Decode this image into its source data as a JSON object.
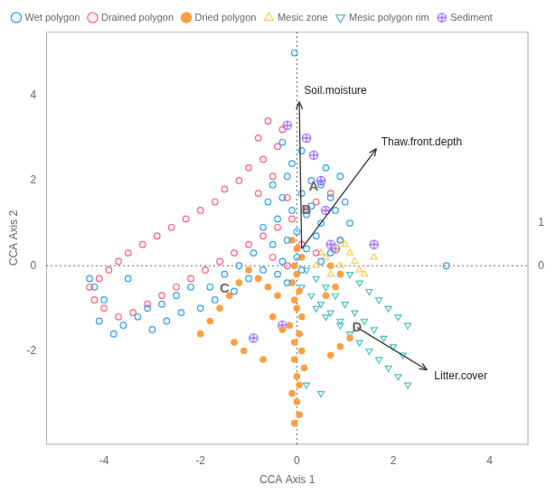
{
  "chart_data": {
    "type": "scatter",
    "xlabel": "CCA Axis 1",
    "ylabel": "CCA Axis 2",
    "xlim": [
      -5.2,
      4.8
    ],
    "ylim": [
      -4.2,
      5.5
    ],
    "xticks": [
      -4,
      -2,
      0,
      2,
      4
    ],
    "yticks": [
      -2,
      0,
      2,
      4
    ],
    "y2lim": [
      -4.2,
      5.5
    ],
    "y2ticks": [
      0,
      1
    ],
    "grid": false,
    "legend": "upper left",
    "series": [
      {
        "name": "Wet polygon",
        "marker": "open_circle",
        "values": [
          [
            -0.05,
            5.0
          ],
          [
            -0.3,
            2.9
          ],
          [
            0.1,
            2.7
          ],
          [
            -0.1,
            2.4
          ],
          [
            0.6,
            2.3
          ],
          [
            0.9,
            2.1
          ],
          [
            -0.2,
            2.1
          ],
          [
            0.3,
            2.0
          ],
          [
            -0.5,
            1.9
          ],
          [
            0.5,
            1.9
          ],
          [
            0.1,
            1.7
          ],
          [
            -0.3,
            1.6
          ],
          [
            0.7,
            1.6
          ],
          [
            1.0,
            1.5
          ],
          [
            -0.6,
            1.5
          ],
          [
            0.3,
            1.4
          ],
          [
            -0.1,
            1.3
          ],
          [
            0.8,
            1.3
          ],
          [
            0.2,
            1.2
          ],
          [
            -0.4,
            1.1
          ],
          [
            0.5,
            1.0
          ],
          [
            1.1,
            1.0
          ],
          [
            -0.7,
            0.9
          ],
          [
            0.0,
            0.8
          ],
          [
            0.4,
            0.7
          ],
          [
            -0.2,
            0.6
          ],
          [
            0.9,
            0.6
          ],
          [
            -0.5,
            0.5
          ],
          [
            0.2,
            0.4
          ],
          [
            0.7,
            0.3
          ],
          [
            -0.9,
            0.3
          ],
          [
            0.0,
            0.2
          ],
          [
            -0.3,
            0.1
          ],
          [
            0.5,
            0.1
          ],
          [
            -1.2,
            0.0
          ],
          [
            -0.7,
            -0.1
          ],
          [
            0.1,
            -0.1
          ],
          [
            -0.4,
            -0.2
          ],
          [
            -1.5,
            -0.2
          ],
          [
            -1.0,
            -0.3
          ],
          [
            -0.2,
            -0.4
          ],
          [
            -1.8,
            -0.5
          ],
          [
            -2.2,
            -0.5
          ],
          [
            -1.3,
            -0.6
          ],
          [
            -2.5,
            -0.7
          ],
          [
            -1.7,
            -0.8
          ],
          [
            -2.8,
            -0.9
          ],
          [
            -2.0,
            -1.0
          ],
          [
            -3.1,
            -1.0
          ],
          [
            -2.4,
            -1.1
          ],
          [
            -3.3,
            -1.2
          ],
          [
            -2.7,
            -1.3
          ],
          [
            -3.6,
            -1.4
          ],
          [
            -3.0,
            -1.5
          ],
          [
            -3.8,
            -1.6
          ],
          [
            -4.0,
            -0.8
          ],
          [
            -4.2,
            -0.5
          ],
          [
            -4.3,
            -0.3
          ],
          [
            -4.1,
            -1.3
          ],
          [
            -3.5,
            -0.3
          ],
          [
            3.1,
            0.0
          ]
        ]
      },
      {
        "name": "Drained polygon",
        "marker": "open_circle",
        "values": [
          [
            -0.6,
            3.4
          ],
          [
            -0.3,
            3.2
          ],
          [
            -0.8,
            3.0
          ],
          [
            -0.4,
            2.8
          ],
          [
            -0.7,
            2.5
          ],
          [
            -1.0,
            2.3
          ],
          [
            -0.5,
            2.1
          ],
          [
            -1.2,
            2.0
          ],
          [
            -1.5,
            1.8
          ],
          [
            -0.8,
            1.7
          ],
          [
            -0.2,
            1.6
          ],
          [
            -1.7,
            1.5
          ],
          [
            -2.0,
            1.3
          ],
          [
            -2.3,
            1.1
          ],
          [
            -2.6,
            0.9
          ],
          [
            -2.9,
            0.7
          ],
          [
            -3.2,
            0.5
          ],
          [
            -3.5,
            0.3
          ],
          [
            -3.7,
            0.1
          ],
          [
            -3.9,
            -0.1
          ],
          [
            -4.1,
            -0.3
          ],
          [
            -4.3,
            -0.5
          ],
          [
            -4.2,
            -0.8
          ],
          [
            -4.0,
            -1.0
          ],
          [
            -3.7,
            -1.2
          ],
          [
            -3.4,
            -1.1
          ],
          [
            -3.1,
            -0.9
          ],
          [
            -2.8,
            -0.7
          ],
          [
            -2.5,
            -0.5
          ],
          [
            -2.2,
            -0.3
          ],
          [
            -1.9,
            -0.1
          ],
          [
            -1.6,
            0.1
          ],
          [
            -1.3,
            0.3
          ],
          [
            -1.0,
            0.5
          ],
          [
            -0.7,
            0.7
          ],
          [
            -0.4,
            0.9
          ],
          [
            -0.1,
            1.1
          ],
          [
            0.2,
            1.3
          ],
          [
            0.4,
            1.5
          ],
          [
            0.7,
            1.7
          ],
          [
            0.1,
            0.5
          ],
          [
            0.4,
            0.3
          ],
          [
            -0.5,
            0.2
          ],
          [
            -0.2,
            0.0
          ]
        ]
      },
      {
        "name": "Dried polygon",
        "marker": "filled_circle",
        "values": [
          [
            -0.1,
            0.6
          ],
          [
            0.0,
            0.4
          ],
          [
            0.1,
            0.2
          ],
          [
            -0.05,
            0.0
          ],
          [
            0.0,
            -0.2
          ],
          [
            -0.1,
            -0.4
          ],
          [
            0.05,
            -0.6
          ],
          [
            -0.05,
            -0.8
          ],
          [
            0.0,
            -1.0
          ],
          [
            0.1,
            -1.2
          ],
          [
            -0.15,
            -1.4
          ],
          [
            0.05,
            -1.6
          ],
          [
            -0.05,
            -1.8
          ],
          [
            0.1,
            -2.0
          ],
          [
            -0.05,
            -2.2
          ],
          [
            0.15,
            -2.4
          ],
          [
            0.0,
            -2.6
          ],
          [
            0.05,
            -2.8
          ],
          [
            -0.1,
            -3.0
          ],
          [
            0.0,
            -3.2
          ],
          [
            0.05,
            -3.5
          ],
          [
            -0.05,
            -3.7
          ],
          [
            0.6,
            -0.7
          ],
          [
            0.8,
            -0.5
          ],
          [
            0.9,
            -0.2
          ],
          [
            0.7,
            0.0
          ],
          [
            -0.4,
            -0.7
          ],
          [
            -0.6,
            -0.5
          ],
          [
            -0.8,
            -0.3
          ],
          [
            -1.0,
            -0.1
          ],
          [
            -1.2,
            -0.4
          ],
          [
            -1.4,
            -0.7
          ],
          [
            -1.6,
            -1.0
          ],
          [
            -1.8,
            -1.3
          ],
          [
            -2.0,
            -1.6
          ],
          [
            -1.3,
            -1.8
          ],
          [
            -1.1,
            -2.0
          ],
          [
            -0.7,
            -2.2
          ],
          [
            1.1,
            -1.7
          ],
          [
            0.9,
            -1.9
          ],
          [
            0.7,
            -2.1
          ],
          [
            -0.5,
            -1.2
          ],
          [
            -0.3,
            -1.5
          ]
        ]
      },
      {
        "name": "Mesic zone",
        "marker": "open_triangle_up",
        "values": [
          [
            0.6,
            0.2
          ],
          [
            0.9,
            0.0
          ],
          [
            1.1,
            0.3
          ],
          [
            1.3,
            -0.1
          ],
          [
            0.8,
            0.4
          ],
          [
            1.6,
            0.2
          ],
          [
            0.4,
            0.0
          ],
          [
            0.7,
            -0.2
          ],
          [
            1.2,
            0.1
          ],
          [
            1.0,
            0.5
          ],
          [
            1.4,
            -0.2
          ],
          [
            0.5,
            0.3
          ],
          [
            0.9,
            0.6
          ]
        ]
      },
      {
        "name": "Mesic polygon rim",
        "marker": "open_triangle_down",
        "values": [
          [
            0.2,
            -0.1
          ],
          [
            0.4,
            -0.3
          ],
          [
            0.6,
            -0.5
          ],
          [
            0.8,
            -0.7
          ],
          [
            1.0,
            -0.9
          ],
          [
            1.2,
            -1.1
          ],
          [
            1.4,
            -1.3
          ],
          [
            1.6,
            -1.5
          ],
          [
            1.8,
            -1.7
          ],
          [
            2.0,
            -1.9
          ],
          [
            2.2,
            -2.1
          ],
          [
            0.4,
            -1.0
          ],
          [
            0.6,
            -1.2
          ],
          [
            0.9,
            -1.4
          ],
          [
            1.1,
            -1.6
          ],
          [
            1.3,
            -1.8
          ],
          [
            1.5,
            -2.0
          ],
          [
            1.7,
            -2.2
          ],
          [
            1.9,
            -2.4
          ],
          [
            2.1,
            -2.6
          ],
          [
            2.3,
            -2.8
          ],
          [
            0.2,
            -2.8
          ],
          [
            0.5,
            -3.0
          ],
          [
            0.1,
            -0.5
          ],
          [
            0.3,
            -0.7
          ],
          [
            0.5,
            -0.9
          ],
          [
            0.7,
            -1.1
          ],
          [
            0.9,
            -1.3
          ],
          [
            1.1,
            -0.2
          ],
          [
            1.3,
            -0.4
          ],
          [
            1.5,
            -0.6
          ],
          [
            1.7,
            -0.8
          ],
          [
            1.9,
            -1.0
          ],
          [
            2.1,
            -1.2
          ],
          [
            2.3,
            -1.4
          ]
        ]
      },
      {
        "name": "Sediment",
        "marker": "crossed_circle",
        "values": [
          [
            -0.2,
            3.3
          ],
          [
            0.2,
            3.0
          ],
          [
            0.35,
            2.6
          ],
          [
            0.5,
            2.0
          ],
          [
            0.6,
            1.3
          ],
          [
            0.7,
            0.5
          ],
          [
            0.8,
            0.4
          ],
          [
            1.6,
            0.5
          ],
          [
            -0.3,
            -1.4
          ],
          [
            -0.9,
            -1.7
          ]
        ]
      }
    ],
    "reference_lines": {
      "x": [
        0
      ],
      "y": [
        0
      ]
    },
    "annotations": [
      {
        "text": "A",
        "x": 0.35,
        "y": 1.85
      },
      {
        "text": "B",
        "x": 0.2,
        "y": 1.3
      },
      {
        "text": "C",
        "x": -1.5,
        "y": -0.55
      },
      {
        "text": "D",
        "x": 1.25,
        "y": -1.45
      }
    ],
    "arrows": [
      {
        "text": "Soil.moisture",
        "start": [
          0.1,
          0.4
        ],
        "end": [
          0.05,
          3.85
        ],
        "text_x": 0.15,
        "text_y": 4.1
      },
      {
        "text": "Thaw.front.depth",
        "start": [
          0.1,
          0.4
        ],
        "end": [
          1.65,
          2.75
        ],
        "text_x": 1.75,
        "text_y": 2.9
      },
      {
        "text": "Litter.cover",
        "start": [
          1.25,
          -1.45
        ],
        "end": [
          2.7,
          -2.45
        ],
        "text_x": 2.85,
        "text_y": -2.6
      }
    ]
  }
}
